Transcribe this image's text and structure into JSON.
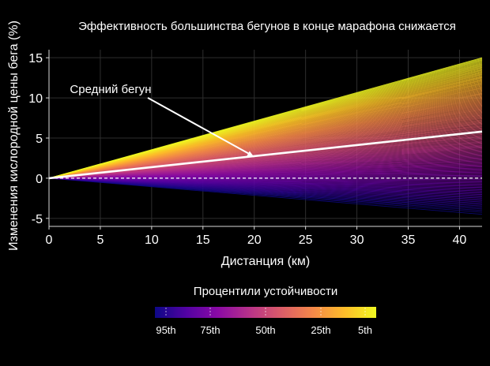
{
  "chart_data": {
    "type": "line",
    "title": "Эффективность большинства бегунов в конце марафона снижается",
    "xlabel": "Дистанция (км)",
    "ylabel": "Изменения кислородной цены бега (%)",
    "xlim": [
      0,
      42.2
    ],
    "ylim": [
      -6,
      16
    ],
    "xticks": [
      0,
      5,
      10,
      15,
      20,
      25,
      30,
      35,
      40
    ],
    "yticks": [
      -5,
      0,
      5,
      10,
      15
    ],
    "grid": true,
    "reference_line": {
      "y": 0,
      "style": "dashed",
      "color": "#ffffff"
    },
    "runners": {
      "count": 160,
      "x_start": 0,
      "x_end": 42.2,
      "end_value_range": [
        -4.5,
        15
      ],
      "colormap": "plasma"
    },
    "highlight_series": {
      "name": "Средний бегун",
      "x": [
        0,
        42.2
      ],
      "y": [
        0,
        5.8
      ],
      "color": "#ffffff"
    },
    "annotation": {
      "text": "Средний бегун",
      "arrow_to": [
        20,
        2.6
      ]
    },
    "colorbar": {
      "title": "Процентили устойчивости",
      "ticks": [
        "95th",
        "75th",
        "50th",
        "25th",
        "5th"
      ],
      "tick_positions": [
        0.05,
        0.25,
        0.5,
        0.75,
        0.95
      ],
      "colors": [
        "#0d0887",
        "#5302a3",
        "#8b0aa5",
        "#b83289",
        "#db5c68",
        "#f48849",
        "#febd2a",
        "#f0f921"
      ]
    }
  }
}
